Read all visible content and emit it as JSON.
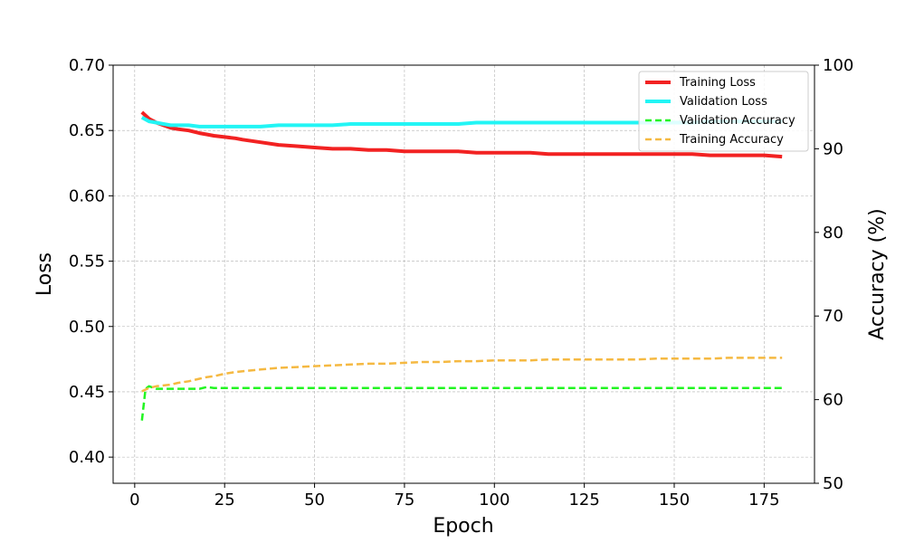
{
  "chart_data": {
    "type": "line",
    "title": "",
    "xlabel": "Epoch",
    "ylabel_left": "Loss",
    "ylabel_right": "Accuracy (%)",
    "xlim": [
      -6,
      189
    ],
    "ylim_left": [
      0.38,
      0.7
    ],
    "ylim_right": [
      50,
      100
    ],
    "xticks": [
      0,
      25,
      50,
      75,
      100,
      125,
      150,
      175
    ],
    "yticks_left": [
      "0.40",
      "0.45",
      "0.50",
      "0.55",
      "0.60",
      "0.65",
      "0.70"
    ],
    "yticks_right": [
      "50",
      "60",
      "70",
      "80",
      "90",
      "100"
    ],
    "grid": true,
    "legend_position": "top-right",
    "series": [
      {
        "name": "Training Loss",
        "axis": "left",
        "color": "#f22222",
        "style": "solid",
        "x": [
          2,
          4,
          6,
          8,
          10,
          12,
          15,
          18,
          20,
          22,
          25,
          28,
          30,
          35,
          40,
          45,
          50,
          55,
          60,
          65,
          70,
          75,
          80,
          85,
          90,
          95,
          100,
          105,
          110,
          115,
          120,
          125,
          130,
          135,
          140,
          145,
          150,
          155,
          160,
          165,
          170,
          175,
          180
        ],
        "values": [
          0.664,
          0.659,
          0.656,
          0.654,
          0.652,
          0.651,
          0.65,
          0.648,
          0.647,
          0.646,
          0.645,
          0.644,
          0.643,
          0.641,
          0.639,
          0.638,
          0.637,
          0.636,
          0.636,
          0.635,
          0.635,
          0.634,
          0.634,
          0.634,
          0.634,
          0.633,
          0.633,
          0.633,
          0.633,
          0.632,
          0.632,
          0.632,
          0.632,
          0.632,
          0.632,
          0.632,
          0.632,
          0.632,
          0.631,
          0.631,
          0.631,
          0.631,
          0.63
        ]
      },
      {
        "name": "Validation Loss",
        "axis": "left",
        "color": "#22f5f5",
        "style": "solid",
        "x": [
          2,
          4,
          6,
          8,
          10,
          12,
          15,
          18,
          20,
          22,
          25,
          28,
          30,
          35,
          40,
          45,
          50,
          55,
          60,
          65,
          70,
          75,
          80,
          85,
          90,
          95,
          100,
          105,
          110,
          115,
          120,
          125,
          130,
          135,
          140,
          145,
          150,
          155,
          160,
          165,
          170,
          175,
          180
        ],
        "values": [
          0.66,
          0.657,
          0.656,
          0.655,
          0.654,
          0.654,
          0.654,
          0.653,
          0.653,
          0.653,
          0.653,
          0.653,
          0.653,
          0.653,
          0.654,
          0.654,
          0.654,
          0.654,
          0.655,
          0.655,
          0.655,
          0.655,
          0.655,
          0.655,
          0.655,
          0.656,
          0.656,
          0.656,
          0.656,
          0.656,
          0.656,
          0.656,
          0.656,
          0.656,
          0.656,
          0.656,
          0.656,
          0.656,
          0.657,
          0.657,
          0.657,
          0.657,
          0.657
        ]
      },
      {
        "name": "Validation Accuracy",
        "axis": "right",
        "color": "#22f522",
        "style": "dashed",
        "x": [
          2,
          3,
          4,
          6,
          8,
          10,
          12,
          15,
          17,
          18,
          20,
          22,
          25,
          50,
          100,
          150,
          180
        ],
        "values": [
          57.5,
          61.3,
          61.6,
          61.3,
          61.3,
          61.3,
          61.3,
          61.3,
          61.3,
          61.3,
          61.5,
          61.4,
          61.4,
          61.4,
          61.4,
          61.4,
          61.4
        ]
      },
      {
        "name": "Training Accuracy",
        "axis": "right",
        "color": "#f5b942",
        "style": "dashed",
        "x": [
          2,
          4,
          6,
          8,
          10,
          12,
          15,
          18,
          20,
          22,
          25,
          28,
          30,
          35,
          40,
          45,
          50,
          55,
          60,
          65,
          70,
          75,
          80,
          85,
          90,
          95,
          100,
          105,
          110,
          115,
          120,
          125,
          130,
          135,
          140,
          145,
          150,
          155,
          160,
          165,
          170,
          175,
          180
        ],
        "values": [
          61.0,
          61.4,
          61.6,
          61.7,
          61.8,
          62.0,
          62.2,
          62.5,
          62.7,
          62.8,
          63.1,
          63.3,
          63.4,
          63.6,
          63.8,
          63.9,
          64.0,
          64.1,
          64.2,
          64.3,
          64.3,
          64.4,
          64.5,
          64.5,
          64.6,
          64.6,
          64.7,
          64.7,
          64.7,
          64.8,
          64.8,
          64.8,
          64.8,
          64.8,
          64.8,
          64.9,
          64.9,
          64.9,
          64.9,
          65.0,
          65.0,
          65.0,
          65.0
        ]
      }
    ]
  }
}
